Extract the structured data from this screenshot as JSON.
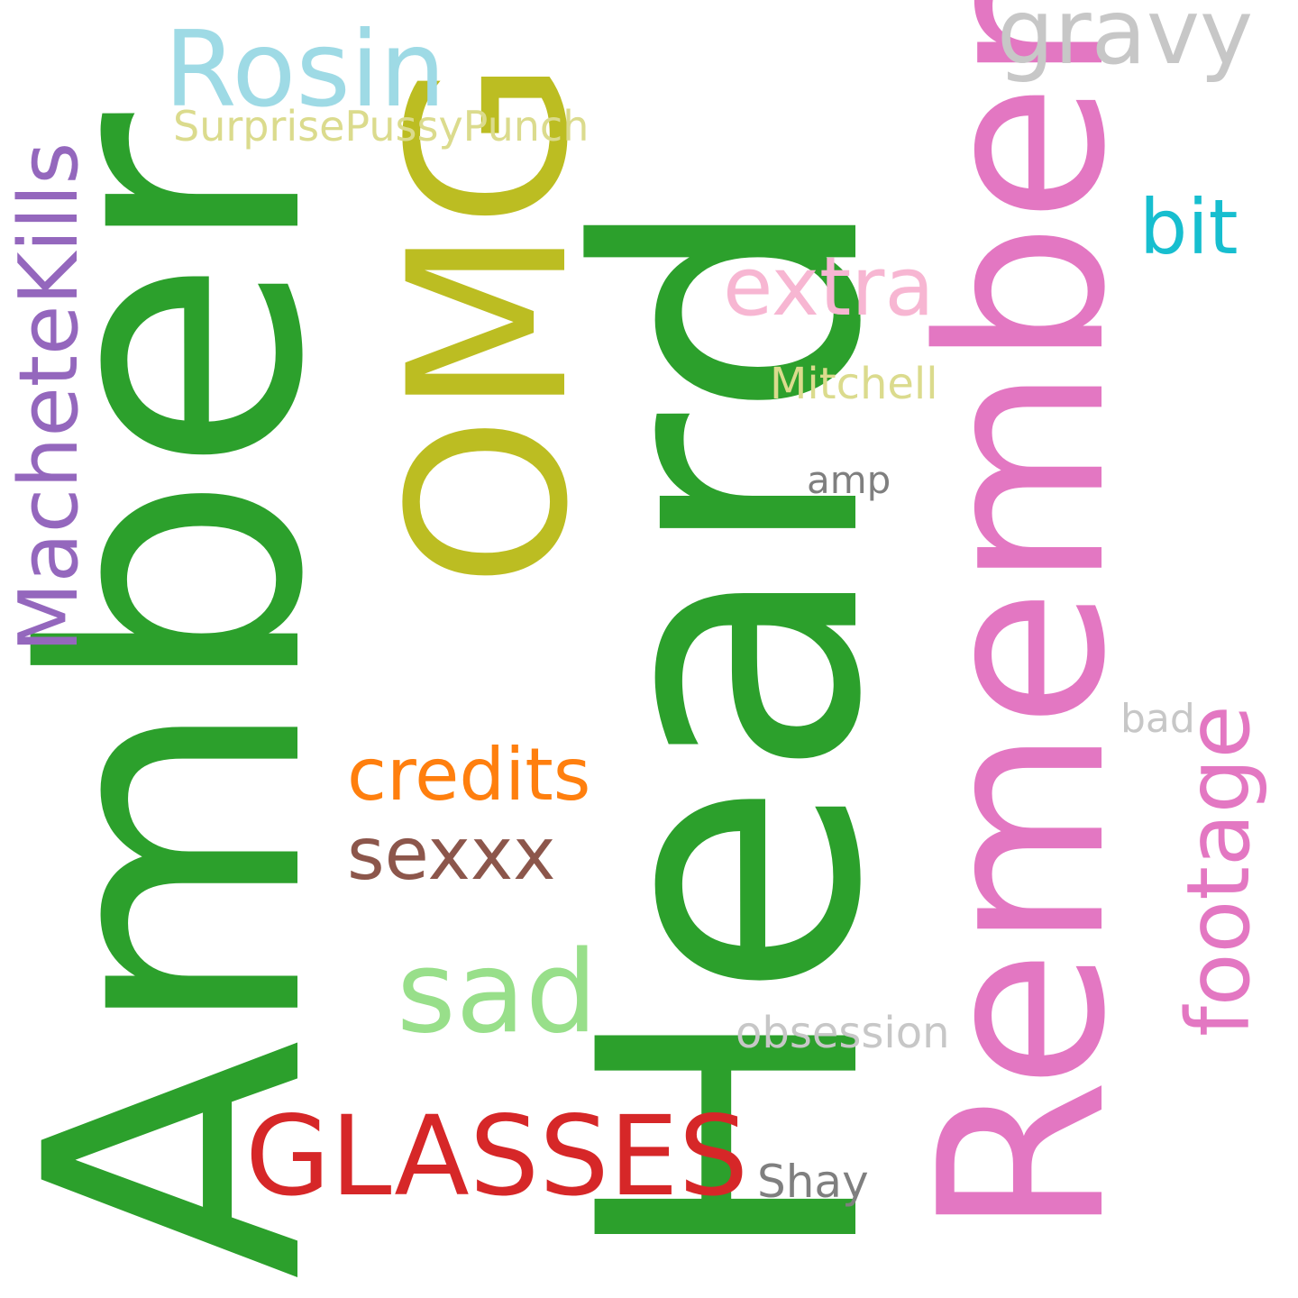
{
  "words": [
    {
      "text": "Amber",
      "color": "#2ca02c"
    },
    {
      "text": "Heard",
      "color": "#2ca02c"
    },
    {
      "text": "Remember",
      "color": "#e377c2"
    },
    {
      "text": "OMG",
      "color": "#bcbd22"
    },
    {
      "text": "Rosin",
      "color": "#9edae5"
    },
    {
      "text": "gravy",
      "color": "#c7c7c7"
    },
    {
      "text": "SurprisePussyPunch",
      "color": "#dbdb8d"
    },
    {
      "text": "MacheteKills",
      "color": "#9467bd"
    },
    {
      "text": "bit",
      "color": "#17becf"
    },
    {
      "text": "extra",
      "color": "#f7b6d2"
    },
    {
      "text": "Mitchell",
      "color": "#dbdb8d"
    },
    {
      "text": "amp",
      "color": "#7f7f7f"
    },
    {
      "text": "bad",
      "color": "#c7c7c7"
    },
    {
      "text": "footage",
      "color": "#e377c2"
    },
    {
      "text": "credits",
      "color": "#ff7f0e"
    },
    {
      "text": "sexxx",
      "color": "#8c564b"
    },
    {
      "text": "sad",
      "color": "#98df8a"
    },
    {
      "text": "obsession",
      "color": "#c7c7c7"
    },
    {
      "text": "GLASSES",
      "color": "#d62728"
    },
    {
      "text": "Shay",
      "color": "#7f7f7f"
    }
  ]
}
